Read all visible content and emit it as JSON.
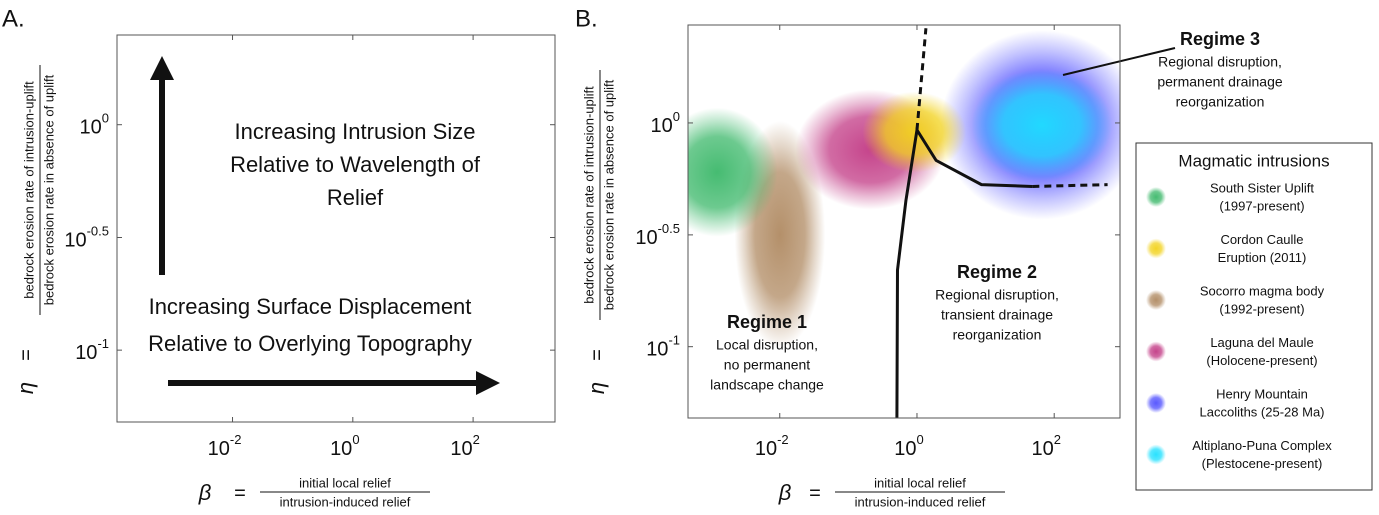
{
  "chart_data": [
    {
      "type": "schematic",
      "panel_label": "A.",
      "xscale": "log",
      "yscale": "log",
      "xlim": [
        0.00012,
        2300
      ],
      "ylim": [
        0.048,
        2.5
      ],
      "xticks": [
        {
          "value": 0.01,
          "label": "10",
          "exponent": "-2"
        },
        {
          "value": 1,
          "label": "10",
          "exponent": "0"
        },
        {
          "value": 100,
          "label": "10",
          "exponent": "2"
        }
      ],
      "yticks": [
        {
          "value": 0.1,
          "label": "10",
          "exponent": "-1"
        },
        {
          "value": 0.316,
          "label": "10",
          "exponent": "-0.5"
        },
        {
          "value": 1,
          "label": "10",
          "exponent": "0"
        }
      ],
      "xlabel": {
        "symbol": "β",
        "equals": "=",
        "numerator": "initial local relief",
        "denominator": "intrusion-induced relief"
      },
      "ylabel": {
        "symbol": "η",
        "equals": "=",
        "numerator": "bedrock erosion rate of intrusion-uplift",
        "denominator": "bedrock erosion rate in absence of uplift"
      },
      "annotations": [
        {
          "lines": [
            "Increasing Intrusion Size",
            "Relative to Wavelength of",
            "Relief"
          ]
        },
        {
          "lines": [
            "Increasing Surface Displacement",
            "Relative to Overlying Topography"
          ]
        }
      ]
    },
    {
      "type": "blob",
      "panel_label": "B.",
      "xscale": "log",
      "yscale": "log",
      "xlim": [
        0.00046,
        910
      ],
      "ylim": [
        0.048,
        2.74
      ],
      "xticks": [
        {
          "value": 0.01,
          "label": "10",
          "exponent": "-2"
        },
        {
          "value": 1,
          "label": "10",
          "exponent": "0"
        },
        {
          "value": 100,
          "label": "10",
          "exponent": "2"
        }
      ],
      "yticks": [
        {
          "value": 0.1,
          "label": "10",
          "exponent": "-1"
        },
        {
          "value": 0.316,
          "label": "10",
          "exponent": "-0.5"
        },
        {
          "value": 1,
          "label": "10",
          "exponent": "0"
        }
      ],
      "xlabel": {
        "symbol": "β",
        "equals": "=",
        "numerator": "initial local relief",
        "denominator": "intrusion-induced relief"
      },
      "ylabel": {
        "symbol": "η",
        "equals": "=",
        "numerator": "bedrock erosion rate of intrusion-uplift",
        "denominator": "bedrock erosion rate in absence of uplift"
      },
      "legend_title": "Magmatic intrusions",
      "series": [
        {
          "name": [
            "South Sister Uplift",
            "(1997-present)"
          ],
          "color": "#3cb86a",
          "xrange": [
            0.00016,
            0.0093
          ],
          "yrange": [
            0.31,
            1.17
          ]
        },
        {
          "name": [
            "Cordon Caulle",
            "Eruption (2011)"
          ],
          "color": "#f2d21c",
          "xrange": [
            0.16,
            5.2
          ],
          "yrange": [
            0.6,
            1.38
          ]
        },
        {
          "name": [
            "Socorro magma body",
            "(1992-present)"
          ],
          "color": "#b08a62",
          "xrange": [
            0.0022,
            0.046
          ],
          "yrange": [
            0.098,
            1.02
          ]
        },
        {
          "name": [
            "Laguna del Maule",
            "(Holocene-present)"
          ],
          "color": "#c23a85",
          "xrange": [
            0.017,
            2.6
          ],
          "yrange": [
            0.41,
            1.41
          ]
        },
        {
          "name": [
            "Henry Mountain",
            "Laccoliths (25-28 Ma)"
          ],
          "color": "#5050ff",
          "xrange": [
            2.2,
            1950
          ],
          "yrange": [
            0.37,
            2.6
          ]
        },
        {
          "name": [
            "Altiplano-Puna Complex",
            "(Plestocene-present)"
          ],
          "color": "#1ee0ff",
          "xrange": [
            6.2,
            700
          ],
          "yrange": [
            0.55,
            1.74
          ]
        }
      ],
      "boundaries": [
        {
          "style": "solid",
          "x": [
            0.51,
            0.52,
            0.69,
            1.0,
            1.9,
            8.7,
            48
          ],
          "y": [
            0.048,
            0.22,
            0.45,
            0.93,
            0.68,
            0.53,
            0.52
          ]
        },
        {
          "style": "dashed",
          "x": [
            1.0,
            1.35
          ],
          "y": [
            0.93,
            2.65
          ]
        },
        {
          "style": "dashed",
          "x": [
            48,
            600
          ],
          "y": [
            0.52,
            0.53
          ]
        }
      ],
      "annotations": [
        {
          "title": "Regime 1",
          "lines": [
            "Local disruption,",
            "no permanent",
            "landscape change"
          ]
        },
        {
          "title": "Regime 2",
          "lines": [
            "Regional disruption,",
            "transient drainage",
            "reorganization"
          ]
        },
        {
          "title": "Regime 3",
          "lines": [
            "Regional disruption,",
            "permanent drainage",
            "reorganization"
          ]
        }
      ]
    }
  ]
}
